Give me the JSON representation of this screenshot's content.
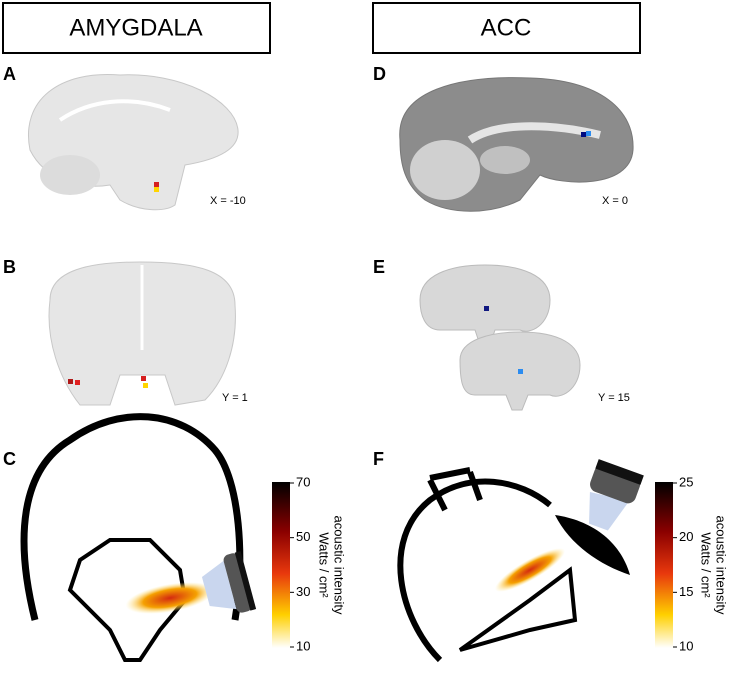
{
  "columns": [
    {
      "title": "AMYGDALA",
      "panels": [
        {
          "label": "A",
          "coord": "X = -10"
        },
        {
          "label": "B",
          "coord": "Y = 1"
        },
        {
          "label": "C",
          "colorbar": {
            "ticks": [
              70,
              50,
              30,
              10
            ],
            "label_line1": "acoustic intensity",
            "label_line2": "Watts / cm²"
          }
        }
      ]
    },
    {
      "title": "ACC",
      "panels": [
        {
          "label": "D",
          "coord": "X = 0"
        },
        {
          "label": "E",
          "coord": "Y = 15"
        },
        {
          "label": "F",
          "colorbar": {
            "ticks": [
              25,
              20,
              15,
              10
            ],
            "label_line1": "acoustic intensity",
            "label_line2": "Watts / cm²"
          }
        }
      ]
    }
  ]
}
